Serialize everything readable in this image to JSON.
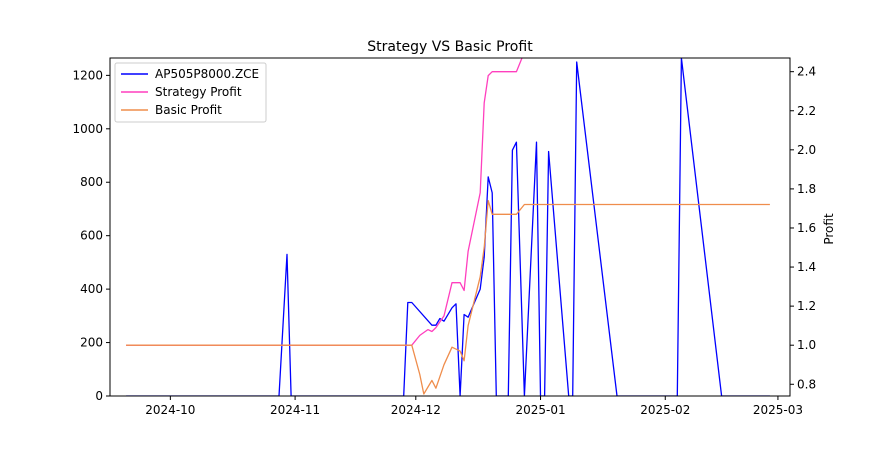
{
  "chart_data": {
    "type": "line",
    "title": "Strategy VS Basic Profit",
    "xlabel": "",
    "ylabel_left": "",
    "ylabel_right": "Profit",
    "x_ticks": [
      "2024-10",
      "2024-11",
      "2024-12",
      "2025-01",
      "2025-02",
      "2025-03"
    ],
    "x_tick_dates": [
      "2024-10-01",
      "2024-11-01",
      "2024-12-01",
      "2025-01-01",
      "2025-02-01",
      "2025-03-01"
    ],
    "xlim": [
      "2024-09-16",
      "2025-03-04"
    ],
    "y_left": {
      "ylim": [
        0,
        1265
      ],
      "ticks": [
        0,
        200,
        400,
        600,
        800,
        1000,
        1200
      ]
    },
    "y_right": {
      "ylim": [
        0.74,
        2.47
      ],
      "ticks": [
        0.8,
        1.0,
        1.2,
        1.4,
        1.6,
        1.8,
        2.0,
        2.2,
        2.4
      ]
    },
    "legend_position": "upper-left",
    "series": [
      {
        "name": "AP505P8000.ZCE",
        "axis": "left",
        "color": "#0000ff",
        "x": [
          "2024-09-20",
          "2024-10-01",
          "2024-10-15",
          "2024-10-28",
          "2024-10-30",
          "2024-10-31",
          "2024-11-10",
          "2024-11-20",
          "2024-11-28",
          "2024-11-29",
          "2024-11-30",
          "2024-12-05",
          "2024-12-06",
          "2024-12-07",
          "2024-12-08",
          "2024-12-10",
          "2024-12-11",
          "2024-12-12",
          "2024-12-13",
          "2024-12-14",
          "2024-12-17",
          "2024-12-18",
          "2024-12-19",
          "2024-12-20",
          "2024-12-21",
          "2024-12-24",
          "2024-12-25",
          "2024-12-26",
          "2024-12-28",
          "2024-12-31",
          "2025-01-01",
          "2025-01-02",
          "2025-01-03",
          "2025-01-08",
          "2025-01-09",
          "2025-01-10",
          "2025-01-20",
          "2025-01-28",
          "2025-02-04",
          "2025-02-05",
          "2025-02-15",
          "2025-02-27"
        ],
        "values": [
          0,
          0,
          0,
          0,
          530,
          0,
          0,
          0,
          0,
          350,
          350,
          265,
          265,
          290,
          280,
          330,
          345,
          0,
          305,
          295,
          400,
          520,
          820,
          760,
          0,
          0,
          920,
          950,
          0,
          950,
          0,
          0,
          915,
          0,
          0,
          1250,
          0,
          0,
          0,
          1265,
          0,
          0
        ]
      },
      {
        "name": "Strategy Profit",
        "axis": "right",
        "color": "#ff3fbe",
        "x": [
          "2024-09-20",
          "2024-11-28",
          "2024-11-30",
          "2024-12-02",
          "2024-12-04",
          "2024-12-05",
          "2024-12-06",
          "2024-12-08",
          "2024-12-10",
          "2024-12-12",
          "2024-12-13",
          "2024-12-14",
          "2024-12-17",
          "2024-12-18",
          "2024-12-19",
          "2024-12-20",
          "2024-12-26",
          "2024-12-28"
        ],
        "values": [
          1.0,
          1.0,
          1.0,
          1.05,
          1.08,
          1.07,
          1.09,
          1.15,
          1.32,
          1.32,
          1.28,
          1.48,
          1.78,
          2.24,
          2.38,
          2.4,
          2.4,
          2.5
        ]
      },
      {
        "name": "Basic Profit",
        "axis": "right",
        "color": "#ef8d4c",
        "x": [
          "2024-09-20",
          "2024-11-28",
          "2024-11-30",
          "2024-12-02",
          "2024-12-03",
          "2024-12-05",
          "2024-12-06",
          "2024-12-08",
          "2024-12-10",
          "2024-12-12",
          "2024-12-13",
          "2024-12-14",
          "2024-12-17",
          "2024-12-18",
          "2024-12-19",
          "2024-12-20",
          "2024-12-26",
          "2024-12-28",
          "2025-02-27"
        ],
        "values": [
          1.0,
          1.0,
          1.0,
          0.85,
          0.75,
          0.82,
          0.78,
          0.9,
          0.99,
          0.97,
          0.92,
          1.1,
          1.35,
          1.5,
          1.74,
          1.67,
          1.67,
          1.72,
          1.72
        ]
      }
    ]
  }
}
